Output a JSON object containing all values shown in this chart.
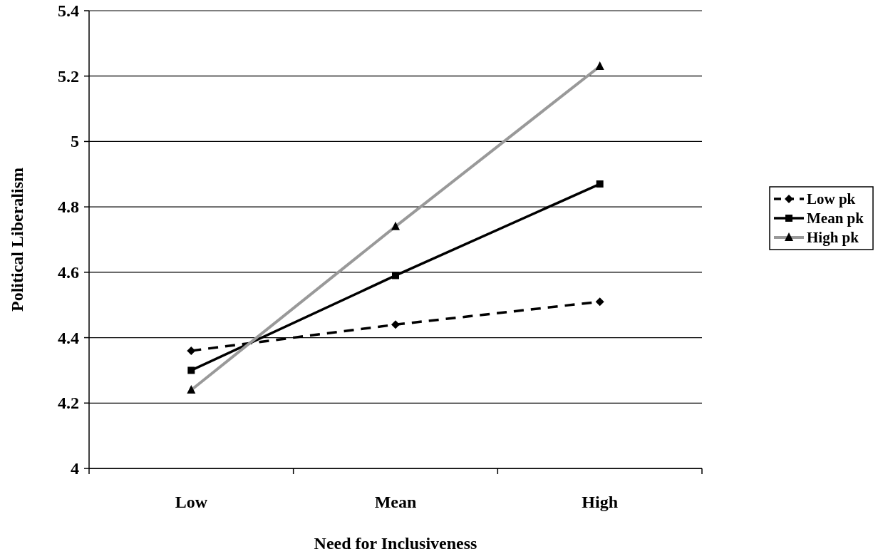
{
  "chart_data": {
    "type": "line",
    "xlabel": "Need for Inclusiveness",
    "ylabel": "Political Liberalism",
    "categories": [
      "Low",
      "Mean",
      "High"
    ],
    "series": [
      {
        "name": "Low pk",
        "color": "#000000",
        "values": [
          4.36,
          4.44,
          4.51
        ],
        "marker": "diamond",
        "line_style": "dashed"
      },
      {
        "name": "Mean pk",
        "color": "#000000",
        "values": [
          4.3,
          4.59,
          4.87
        ],
        "marker": "square",
        "line_style": "solid"
      },
      {
        "name": "High pk",
        "color": "#999999",
        "values": [
          4.24,
          4.74,
          5.23
        ],
        "marker": "triangle",
        "line_style": "solid"
      }
    ],
    "ylim": [
      4,
      5.4
    ],
    "yticks": [
      4,
      4.2,
      4.4,
      4.6,
      4.8,
      5,
      5.2,
      5.4
    ],
    "grid": "y",
    "legend": "right"
  }
}
